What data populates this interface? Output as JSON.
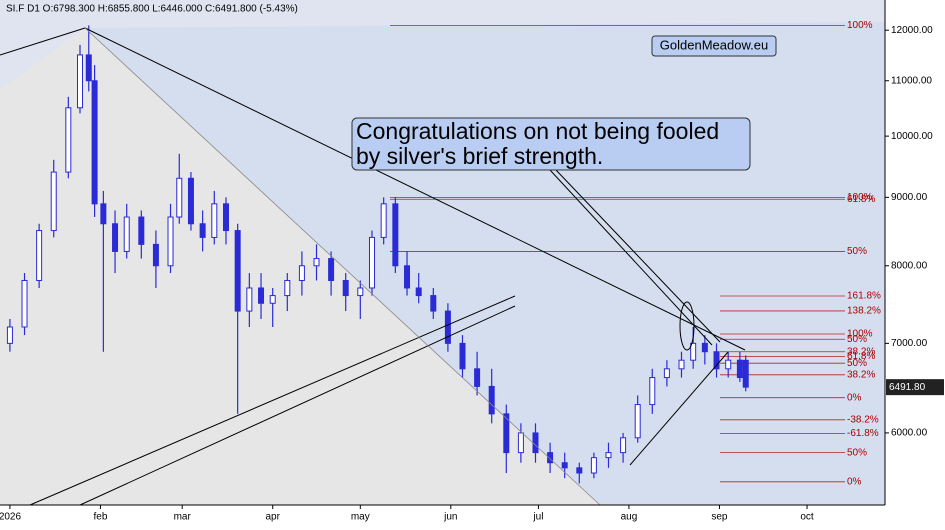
{
  "chart_data": {
    "type": "candlestick",
    "title": "SI.F  D1  O:6798.300  H:6855.800  L:6446.000  C:6491.800  (-5.43%)",
    "watermark": "GoldenMeadow.eu",
    "callout": [
      "Congratulations on not being fooled",
      "by silver's brief strength."
    ],
    "last_price_label": "6491.80",
    "color": "#2b2bd6",
    "log_scale": true,
    "x": [
      0,
      5,
      10,
      15,
      20,
      24,
      27,
      29,
      32,
      36,
      40,
      45,
      50,
      55,
      58,
      62,
      66,
      70,
      74,
      78,
      82,
      86,
      90,
      95,
      100,
      105,
      110,
      115,
      120,
      124,
      128,
      132,
      136,
      140,
      145,
      150,
      155,
      160,
      165,
      170,
      175,
      180,
      185,
      190,
      195,
      200,
      205,
      210,
      215,
      220,
      225,
      230,
      234,
      238,
      242,
      246,
      250,
      252
    ],
    "open": [
      7000,
      7200,
      7800,
      8500,
      9400,
      10500,
      11500,
      11000,
      8900,
      8600,
      8200,
      8700,
      8300,
      8000,
      8700,
      9300,
      8600,
      8400,
      8900,
      8500,
      7400,
      7700,
      7500,
      7600,
      7800,
      8000,
      8100,
      7800,
      7600,
      7700,
      8400,
      8900,
      8000,
      7700,
      7600,
      7400,
      7000,
      6700,
      6500,
      6200,
      5800,
      6000,
      5800,
      5700,
      5650,
      5600,
      5750,
      5800,
      5950,
      6300,
      6600,
      6700,
      6800,
      7000,
      6900,
      6700,
      6800,
      6798.3
    ],
    "high": [
      7300,
      7900,
      8600,
      9600,
      10700,
      11700,
      12100,
      11300,
      9100,
      8800,
      8900,
      8800,
      8500,
      8900,
      9700,
      9400,
      8800,
      9100,
      9000,
      8600,
      7900,
      7900,
      7700,
      7900,
      8200,
      8300,
      8200,
      7900,
      7800,
      8500,
      9000,
      9000,
      8200,
      7900,
      7700,
      7500,
      7100,
      6900,
      6700,
      6300,
      6100,
      6100,
      5900,
      5800,
      5700,
      5800,
      5900,
      6000,
      6400,
      6700,
      6800,
      6900,
      7200,
      7100,
      7000,
      6900,
      6900,
      6855.8
    ],
    "low": [
      6900,
      7100,
      7700,
      8400,
      9300,
      10400,
      10800,
      8700,
      6900,
      7900,
      8100,
      8100,
      7700,
      7900,
      8600,
      8500,
      8200,
      8300,
      8300,
      6200,
      7200,
      7300,
      7200,
      7400,
      7600,
      7800,
      7600,
      7400,
      7300,
      7600,
      8300,
      7900,
      7600,
      7500,
      7300,
      6900,
      6600,
      6400,
      6100,
      5600,
      5700,
      5700,
      5600,
      5550,
      5500,
      5550,
      5650,
      5700,
      5900,
      6200,
      6500,
      6600,
      6700,
      6750,
      6600,
      6600,
      6550,
      6446
    ],
    "close": [
      7200,
      7800,
      8500,
      9400,
      10500,
      11500,
      11000,
      8900,
      8600,
      8200,
      8700,
      8300,
      8000,
      8700,
      9300,
      8600,
      8400,
      8900,
      8500,
      7400,
      7700,
      7500,
      7600,
      7800,
      8000,
      8100,
      7800,
      7600,
      7700,
      8400,
      8900,
      8000,
      7700,
      7600,
      7400,
      7000,
      6700,
      6500,
      6200,
      5800,
      6000,
      5800,
      5700,
      5650,
      5600,
      5750,
      5800,
      5950,
      6300,
      6600,
      6700,
      6800,
      7000,
      6900,
      6700,
      6800,
      6600,
      6491.8
    ],
    "xlim": [
      -3.4,
      299.7
    ],
    "xticks": [
      {
        "value": 0,
        "label": "2026"
      },
      {
        "value": 31,
        "label": "feb"
      },
      {
        "value": 59,
        "label": "mar"
      },
      {
        "value": 90,
        "label": "apr"
      },
      {
        "value": 120,
        "label": "may"
      },
      {
        "value": 151,
        "label": "jun"
      },
      {
        "value": 181,
        "label": "jul"
      },
      {
        "value": 212,
        "label": "aug"
      },
      {
        "value": 243,
        "label": "sep"
      },
      {
        "value": 273,
        "label": "oct"
      }
    ],
    "ylim": [
      5300,
      12640
    ],
    "yticks": [
      {
        "value": 6000,
        "label": "6000.00"
      },
      {
        "value": 7000,
        "label": "7000.00"
      },
      {
        "value": 8000,
        "label": "8000.00"
      },
      {
        "value": 9000,
        "label": "9000.00"
      },
      {
        "value": 10000,
        "label": "10000.00"
      },
      {
        "value": 11000,
        "label": "11000.00"
      },
      {
        "value": 12000,
        "label": "12000.00"
      }
    ],
    "levels_left": [
      {
        "label": "100%",
        "value": 12100
      },
      {
        "label": "100%",
        "value": 9000
      },
      {
        "label": "61.8%",
        "value": 8970
      },
      {
        "label": "50%",
        "value": 8200
      }
    ],
    "levels_right": [
      {
        "label": "161.8%",
        "value": 7594
      },
      {
        "label": "138.2%",
        "value": 7402
      },
      {
        "label": "100%",
        "value": 7114
      },
      {
        "label": "50%",
        "value": 7050
      },
      {
        "label": "38.2%",
        "value": 6900
      },
      {
        "label": "61.8%",
        "value": 6845
      },
      {
        "label": "50%",
        "value": 6765
      },
      {
        "label": "38.2%",
        "value": 6631
      },
      {
        "label": "0%",
        "value": 6375
      },
      {
        "label": "-38.2%",
        "value": 6137
      },
      {
        "label": "-61.8%",
        "value": 5993
      },
      {
        "label": "50%",
        "value": 5800
      },
      {
        "label": "0%",
        "value": 5516
      }
    ]
  }
}
